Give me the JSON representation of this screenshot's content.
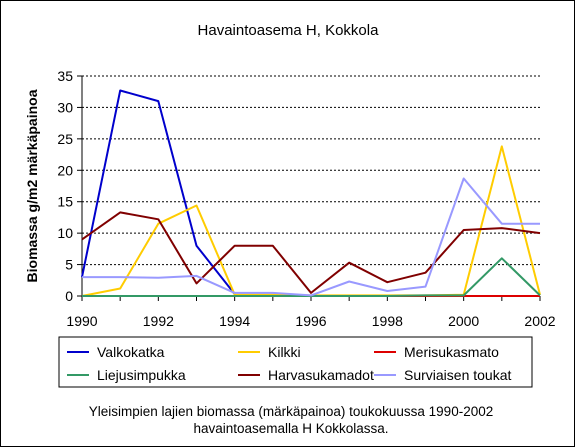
{
  "chart_data": {
    "type": "line",
    "title": "Havaintoasema H, Kokkola",
    "xlabel": "",
    "ylabel": "Biomassa g/m2 märkäpainoa",
    "x": [
      1990,
      1991,
      1992,
      1993,
      1994,
      1995,
      1996,
      1997,
      1998,
      1999,
      2000,
      2001,
      2002
    ],
    "xlim": [
      1990,
      2002
    ],
    "ylim": [
      0,
      35
    ],
    "xticks": [
      "1990",
      "1992",
      "1994",
      "1996",
      "1998",
      "2000",
      "2002"
    ],
    "yticks": [
      "0",
      "5",
      "10",
      "15",
      "20",
      "25",
      "30",
      "35"
    ],
    "grid": "horizontal dashed",
    "legend_position": "bottom",
    "series": [
      {
        "name": "Valkokatka",
        "color": "#0000CC",
        "values": [
          3.0,
          32.7,
          31.0,
          8.0,
          0.3,
          null,
          null,
          null,
          null,
          null,
          null,
          null,
          null
        ]
      },
      {
        "name": "Kilkki",
        "color": "#FFCC00",
        "values": [
          0.0,
          1.2,
          11.5,
          14.4,
          0.2,
          0.2,
          0.1,
          0.1,
          0.1,
          0.1,
          0.2,
          23.8,
          0.2
        ]
      },
      {
        "name": "Merisukasmato",
        "color": "#DD0000",
        "values": [
          0,
          0,
          0,
          0,
          0,
          0,
          0,
          0,
          0,
          0,
          0,
          0,
          0
        ]
      },
      {
        "name": "Liejusimpukka",
        "color": "#339966",
        "values": [
          0.0,
          0.0,
          0.0,
          0.0,
          0.0,
          0.0,
          0.0,
          0.0,
          0.0,
          0.1,
          0.1,
          6.0,
          0.1
        ]
      },
      {
        "name": "Harvasukamadot",
        "color": "#800000",
        "values": [
          9.0,
          13.3,
          12.2,
          2.0,
          8.0,
          8.0,
          0.5,
          5.3,
          2.2,
          3.7,
          10.5,
          10.8,
          10.0
        ]
      },
      {
        "name": "Surviaisen toukat",
        "color": "#9999FF",
        "values": [
          3.0,
          3.0,
          2.9,
          3.2,
          0.5,
          0.5,
          0.1,
          2.3,
          0.8,
          1.5,
          18.7,
          11.5,
          11.5
        ]
      }
    ],
    "caption_line1": "Yleisimpien lajien biomassa (märkäpainoa) toukokuussa 1990-2002",
    "caption_line2": "havaintoasemalla H Kokkolassa."
  }
}
